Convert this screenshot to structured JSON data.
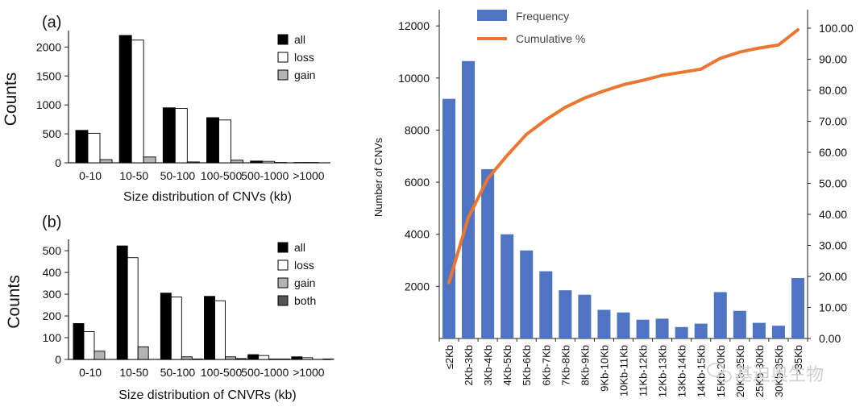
{
  "colors": {
    "all": "#000000",
    "loss": "#ffffff",
    "gain": "#b3b3b3",
    "both": "#555555",
    "frequency": "#4f74c3",
    "cumulative": "#ec7631",
    "axis": "#222222"
  },
  "watermark": "基迫奥生物",
  "chart_data": [
    {
      "type": "bar",
      "panel_label": "(a)",
      "categories": [
        "0-10",
        "10-50",
        "50-100",
        "100-500",
        "500-1000",
        ">1000"
      ],
      "series": [
        {
          "name": "all",
          "values": [
            560,
            2200,
            950,
            780,
            30,
            5
          ]
        },
        {
          "name": "loss",
          "values": [
            510,
            2120,
            940,
            740,
            25,
            5
          ]
        },
        {
          "name": "gain",
          "values": [
            55,
            100,
            15,
            45,
            5,
            0
          ]
        }
      ],
      "xlabel": "Size distribution of CNVs (kb)",
      "ylabel": "Counts",
      "ylim": [
        0,
        2200
      ],
      "yticks": [
        0,
        500,
        1000,
        1500,
        2000
      ],
      "legend_position": "top-right"
    },
    {
      "type": "bar",
      "panel_label": "(b)",
      "categories": [
        "0-10",
        "10-50",
        "50-100",
        "100-500",
        "500-1000",
        ">1000"
      ],
      "series": [
        {
          "name": "all",
          "values": [
            165,
            522,
            305,
            290,
            22,
            12
          ]
        },
        {
          "name": "loss",
          "values": [
            128,
            468,
            287,
            270,
            18,
            8
          ]
        },
        {
          "name": "gain",
          "values": [
            38,
            58,
            12,
            12,
            2,
            0
          ]
        },
        {
          "name": "both",
          "values": [
            0,
            0,
            2,
            4,
            2,
            2
          ]
        }
      ],
      "xlabel": "Size distribution of CNVRs (kb)",
      "ylabel": "Counts",
      "ylim": [
        0,
        530
      ],
      "yticks": [
        0,
        100,
        200,
        300,
        400,
        500
      ],
      "legend_position": "top-right"
    },
    {
      "type": "bar",
      "categories": [
        "≤2Kb",
        "2Kb-3Kb",
        "3Kb-4Kb",
        "4Kb-5Kb",
        "5Kb-6Kb",
        "6Kb-7Kb",
        "7Kb-8Kb",
        "8Kb-9Kb",
        "9Kb-10Kb",
        "10Kb-11Kb",
        "11Kb-12Kb",
        "12Kb-13Kb",
        "13Kb-14Kb",
        "14Kb-15Kb",
        "15Kb-20Kb",
        "20Kb-25Kb",
        "25Kb-30Kb",
        "30Kb-35Kb",
        ">35Kb"
      ],
      "series": [
        {
          "name": "Frequency",
          "type": "bar",
          "axis": "left",
          "values": [
            9200,
            10650,
            6500,
            4000,
            3380,
            2580,
            1850,
            1680,
            1100,
            1000,
            720,
            760,
            440,
            570,
            1780,
            1060,
            600,
            490,
            2320
          ]
        },
        {
          "name": "Cumulative %",
          "type": "line",
          "axis": "right",
          "values": [
            18.0,
            39.0,
            51.5,
            59.0,
            65.8,
            70.5,
            74.5,
            77.5,
            79.8,
            81.8,
            83.2,
            84.8,
            85.8,
            86.8,
            90.3,
            92.3,
            93.6,
            94.6,
            99.5
          ]
        }
      ],
      "xlabel": "",
      "ylabel": "Number of CNVs",
      "ylim": [
        0,
        12500
      ],
      "yticks": [
        2000,
        4000,
        6000,
        8000,
        10000,
        12000
      ],
      "y2lim": [
        0,
        100
      ],
      "y2ticks": [
        "0.00",
        "10.00",
        "20.00",
        "30.00",
        "40.00",
        "50.00",
        "60.00",
        "70.00",
        "80.00",
        "90.00",
        "100.00"
      ],
      "legend_position": "top-left"
    }
  ]
}
